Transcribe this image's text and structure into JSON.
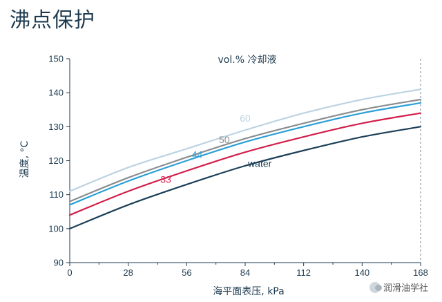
{
  "page": {
    "title": "沸点保护"
  },
  "watermark": {
    "text": "润滑油学社",
    "icon": "wechat-icon"
  },
  "chart_data": {
    "type": "line",
    "title": "vol.% 冷却液",
    "xlabel": "海平面表压, kPa",
    "ylabel": "温度, °C",
    "xlim": [
      0,
      168
    ],
    "ylim": [
      90,
      150
    ],
    "xticks": [
      0,
      28,
      56,
      84,
      112,
      140,
      168
    ],
    "yticks": [
      90,
      100,
      110,
      120,
      130,
      140,
      150
    ],
    "grid": false,
    "reference_line": {
      "x": 168,
      "style": "dashed"
    },
    "series": [
      {
        "name": "water",
        "color": "#1b3f56",
        "x": [
          0,
          28,
          56,
          84,
          112,
          140,
          168
        ],
        "y": [
          100,
          107,
          113,
          118.5,
          123,
          127,
          130
        ]
      },
      {
        "name": "33",
        "color": "#d21e4a",
        "x": [
          0,
          28,
          56,
          84,
          112,
          140,
          168
        ],
        "y": [
          104,
          111,
          117,
          122.5,
          127,
          131,
          134
        ]
      },
      {
        "name": "44",
        "color": "#2a9fd6",
        "x": [
          0,
          28,
          56,
          84,
          112,
          140,
          168
        ],
        "y": [
          107,
          114,
          120,
          125.5,
          130,
          134,
          137
        ]
      },
      {
        "name": "50",
        "color": "#8a8d8f",
        "x": [
          0,
          28,
          56,
          84,
          112,
          140,
          168
        ],
        "y": [
          108,
          115,
          121,
          126.5,
          131,
          135,
          138
        ]
      },
      {
        "name": "60",
        "color": "#bcd3e3",
        "x": [
          0,
          28,
          56,
          84,
          112,
          140,
          168
        ],
        "y": [
          111,
          118,
          123.5,
          129,
          134,
          138,
          141
        ]
      }
    ],
    "series_labels": [
      {
        "text": "water",
        "color": "#1b3f56",
        "x": 91,
        "y": 118.2
      },
      {
        "text": "33",
        "color": "#d21e4a",
        "x": 46,
        "y": 113.5
      },
      {
        "text": "44",
        "color": "#2a9fd6",
        "x": 61,
        "y": 120.8
      },
      {
        "text": "50",
        "color": "#8a8d8f",
        "x": 74,
        "y": 125.2
      },
      {
        "text": "60",
        "color": "#bcd3e3",
        "x": 84,
        "y": 131.5
      }
    ]
  }
}
